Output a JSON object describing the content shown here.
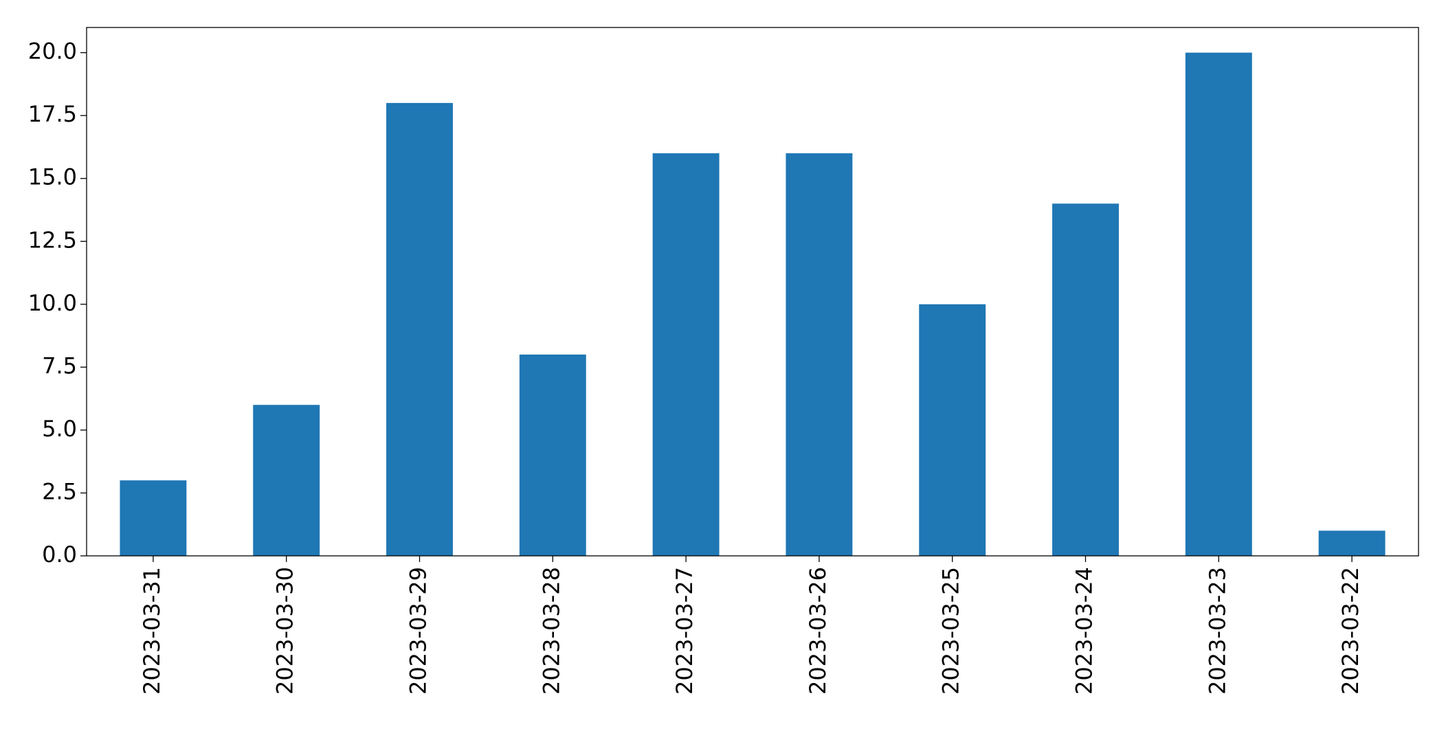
{
  "chart_data": {
    "type": "bar",
    "categories": [
      "2023-03-31",
      "2023-03-30",
      "2023-03-29",
      "2023-03-28",
      "2023-03-27",
      "2023-03-26",
      "2023-03-25",
      "2023-03-24",
      "2023-03-23",
      "2023-03-22"
    ],
    "values": [
      3,
      6,
      18,
      8,
      16,
      16,
      10,
      14,
      20,
      1
    ],
    "color": "#1f77b4",
    "ylim": [
      0,
      21
    ],
    "yticks": [
      {
        "value": 0,
        "label": "0.0"
      },
      2.5,
      {
        "value": 5,
        "label": "5.0"
      },
      7.5,
      {
        "value": 10,
        "label": "10.0"
      },
      12.5,
      {
        "value": 15,
        "label": "15.0"
      },
      17.5,
      {
        "value": 20,
        "label": "20.0"
      }
    ],
    "grid": false
  }
}
